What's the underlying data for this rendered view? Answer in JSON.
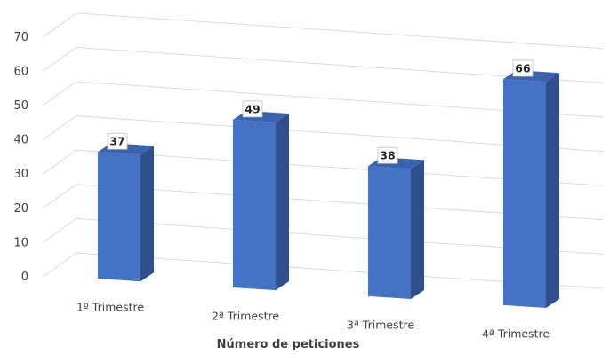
{
  "chart_data": {
    "type": "bar",
    "categories": [
      "1º Trimestre",
      "2ª Trimestre",
      "3ª Trimestre",
      "4ª Trimestre"
    ],
    "values": [
      37,
      49,
      38,
      66
    ],
    "xlabel": "Número de peticiones",
    "ylabel": "",
    "ylim": [
      0,
      70
    ],
    "yticks": [
      0,
      10,
      20,
      30,
      40,
      50,
      60,
      70
    ],
    "grid": true,
    "legend": "none",
    "data_labels": true,
    "colors": {
      "bar_front": "#4472c4",
      "bar_side": "#2f4f8f",
      "bar_top": "#3a62ad",
      "grid": "#d9d9d9",
      "text": "#404040"
    }
  }
}
